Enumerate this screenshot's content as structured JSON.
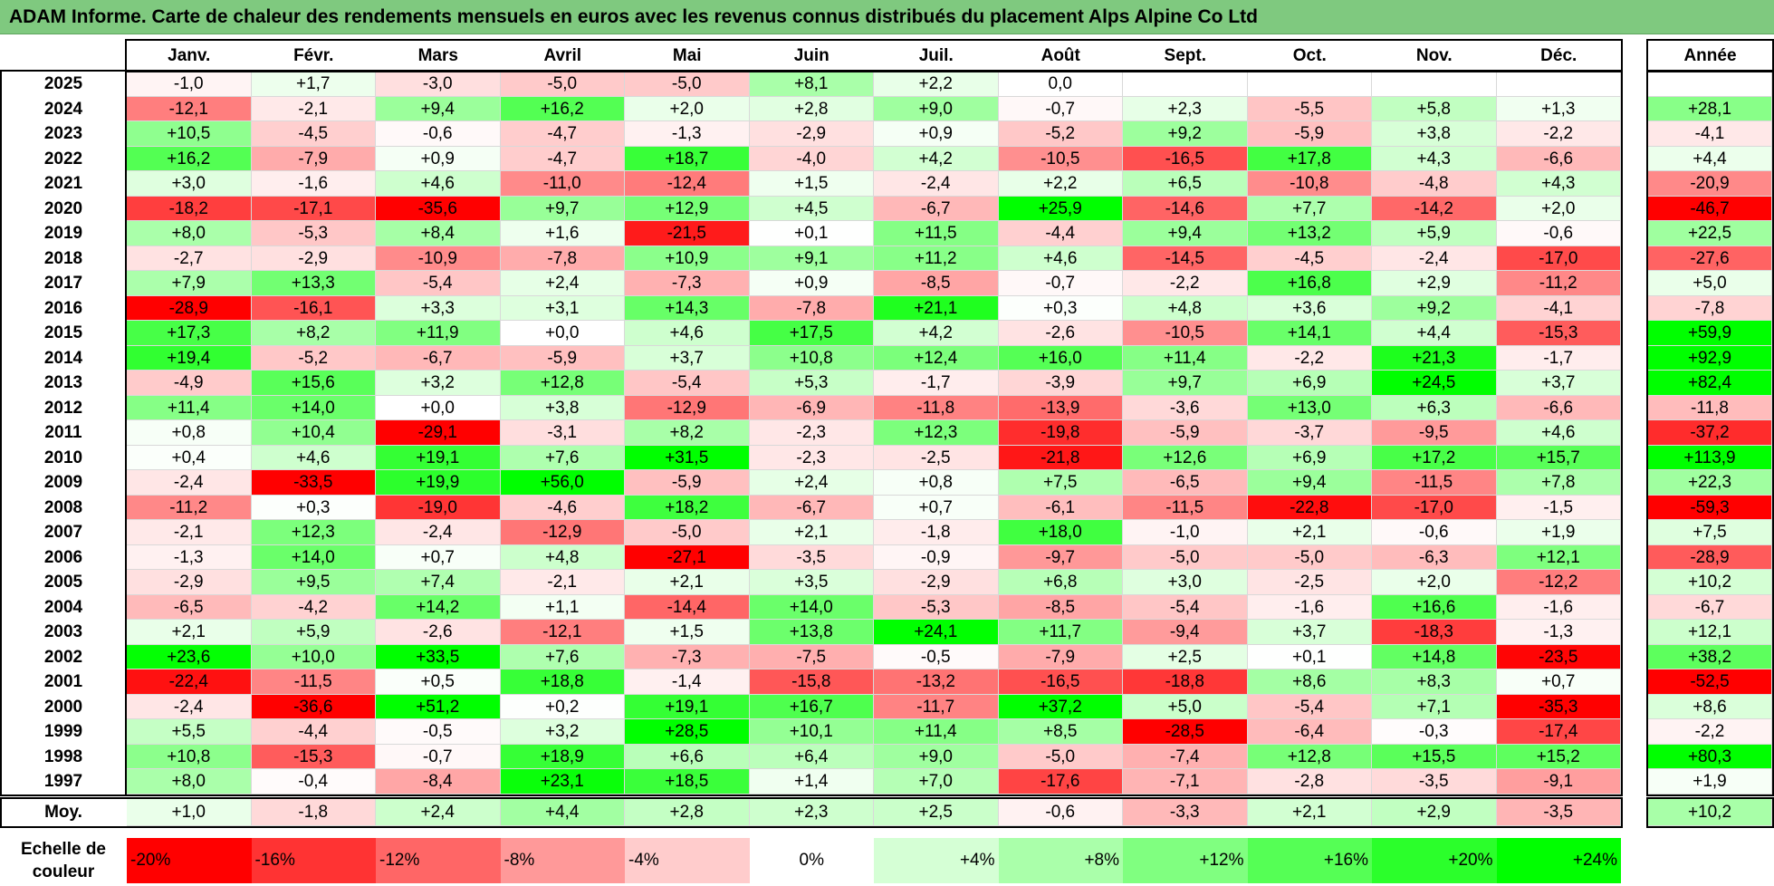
{
  "title": "ADAM Informe. Carte de chaleur des rendements mensuels en euros avec les revenus connus distribués du placement Alps Alpine Co Ltd",
  "chart_data": {
    "type": "heatmap",
    "title": "ADAM Informe. Carte de chaleur des rendements mensuels en euros avec les revenus connus distribués du placement Alps Alpine Co Ltd",
    "columns": [
      "Janv.",
      "Févr.",
      "Mars",
      "Avril",
      "Mai",
      "Juin",
      "Juil.",
      "Août",
      "Sept.",
      "Oct.",
      "Nov.",
      "Déc."
    ],
    "year_header": "Année",
    "rows": [
      {
        "year": "2025",
        "values": [
          "-1,0",
          "+1,7",
          "-3,0",
          "-5,0",
          "-5,0",
          "+8,1",
          "+2,2",
          "0,0",
          "",
          "",
          "",
          ""
        ],
        "annual": ""
      },
      {
        "year": "2024",
        "values": [
          "-12,1",
          "-2,1",
          "+9,4",
          "+16,2",
          "+2,0",
          "+2,8",
          "+9,0",
          "-0,7",
          "+2,3",
          "-5,5",
          "+5,8",
          "+1,3"
        ],
        "annual": "+28,1"
      },
      {
        "year": "2023",
        "values": [
          "+10,5",
          "-4,5",
          "-0,6",
          "-4,7",
          "-1,3",
          "-2,9",
          "+0,9",
          "-5,2",
          "+9,2",
          "-5,9",
          "+3,8",
          "-2,2"
        ],
        "annual": "-4,1"
      },
      {
        "year": "2022",
        "values": [
          "+16,2",
          "-7,9",
          "+0,9",
          "-4,7",
          "+18,7",
          "-4,0",
          "+4,2",
          "-10,5",
          "-16,5",
          "+17,8",
          "+4,3",
          "-6,6"
        ],
        "annual": "+4,4"
      },
      {
        "year": "2021",
        "values": [
          "+3,0",
          "-1,6",
          "+4,6",
          "-11,0",
          "-12,4",
          "+1,5",
          "-2,4",
          "+2,2",
          "+6,5",
          "-10,8",
          "-4,8",
          "+4,3"
        ],
        "annual": "-20,9"
      },
      {
        "year": "2020",
        "values": [
          "-18,2",
          "-17,1",
          "-35,6",
          "+9,7",
          "+12,9",
          "+4,5",
          "-6,7",
          "+25,9",
          "-14,6",
          "+7,7",
          "-14,2",
          "+2,0"
        ],
        "annual": "-46,7"
      },
      {
        "year": "2019",
        "values": [
          "+8,0",
          "-5,3",
          "+8,4",
          "+1,6",
          "-21,5",
          "+0,1",
          "+11,5",
          "-4,4",
          "+9,4",
          "+13,2",
          "+5,9",
          "-0,6"
        ],
        "annual": "+22,5"
      },
      {
        "year": "2018",
        "values": [
          "-2,7",
          "-2,9",
          "-10,9",
          "-7,8",
          "+10,9",
          "+9,1",
          "+11,2",
          "+4,6",
          "-14,5",
          "-4,5",
          "-2,4",
          "-17,0"
        ],
        "annual": "-27,6"
      },
      {
        "year": "2017",
        "values": [
          "+7,9",
          "+13,3",
          "-5,4",
          "+2,4",
          "-7,3",
          "+0,9",
          "-8,5",
          "-0,7",
          "-2,2",
          "+16,8",
          "+2,9",
          "-11,2"
        ],
        "annual": "+5,0"
      },
      {
        "year": "2016",
        "values": [
          "-28,9",
          "-16,1",
          "+3,3",
          "+3,1",
          "+14,3",
          "-7,8",
          "+21,1",
          "+0,3",
          "+4,8",
          "+3,6",
          "+9,2",
          "-4,1"
        ],
        "annual": "-7,8"
      },
      {
        "year": "2015",
        "values": [
          "+17,3",
          "+8,2",
          "+11,9",
          "+0,0",
          "+4,6",
          "+17,5",
          "+4,2",
          "-2,6",
          "-10,5",
          "+14,1",
          "+4,4",
          "-15,3"
        ],
        "annual": "+59,9"
      },
      {
        "year": "2014",
        "values": [
          "+19,4",
          "-5,2",
          "-6,7",
          "-5,9",
          "+3,7",
          "+10,8",
          "+12,4",
          "+16,0",
          "+11,4",
          "-2,2",
          "+21,3",
          "-1,7"
        ],
        "annual": "+92,9"
      },
      {
        "year": "2013",
        "values": [
          "-4,9",
          "+15,6",
          "+3,2",
          "+12,8",
          "-5,4",
          "+5,3",
          "-1,7",
          "-3,9",
          "+9,7",
          "+6,9",
          "+24,5",
          "+3,7"
        ],
        "annual": "+82,4"
      },
      {
        "year": "2012",
        "values": [
          "+11,4",
          "+14,0",
          "+0,0",
          "+3,8",
          "-12,9",
          "-6,9",
          "-11,8",
          "-13,9",
          "-3,6",
          "+13,0",
          "+6,3",
          "-6,6"
        ],
        "annual": "-11,8"
      },
      {
        "year": "2011",
        "values": [
          "+0,8",
          "+10,4",
          "-29,1",
          "-3,1",
          "+8,2",
          "-2,3",
          "+12,3",
          "-19,8",
          "-5,9",
          "-3,7",
          "-9,5",
          "+4,6"
        ],
        "annual": "-37,2"
      },
      {
        "year": "2010",
        "values": [
          "+0,4",
          "+4,6",
          "+19,1",
          "+7,6",
          "+31,5",
          "-2,3",
          "-2,5",
          "-21,8",
          "+12,6",
          "+6,9",
          "+17,2",
          "+15,7"
        ],
        "annual": "+113,9"
      },
      {
        "year": "2009",
        "values": [
          "-2,4",
          "-33,5",
          "+19,9",
          "+56,0",
          "-5,9",
          "+2,4",
          "+0,8",
          "+7,5",
          "-6,5",
          "+9,4",
          "-11,5",
          "+7,8"
        ],
        "annual": "+22,3"
      },
      {
        "year": "2008",
        "values": [
          "-11,2",
          "+0,3",
          "-19,0",
          "-4,6",
          "+18,2",
          "-6,7",
          "+0,7",
          "-6,1",
          "-11,5",
          "-22,8",
          "-17,0",
          "-1,5"
        ],
        "annual": "-59,3"
      },
      {
        "year": "2007",
        "values": [
          "-2,1",
          "+12,3",
          "-2,4",
          "-12,9",
          "-5,0",
          "+2,1",
          "-1,8",
          "+18,0",
          "-1,0",
          "+2,1",
          "-0,6",
          "+1,9"
        ],
        "annual": "+7,5"
      },
      {
        "year": "2006",
        "values": [
          "-1,3",
          "+14,0",
          "+0,7",
          "+4,8",
          "-27,1",
          "-3,5",
          "-0,9",
          "-9,7",
          "-5,0",
          "-5,0",
          "-6,3",
          "+12,1"
        ],
        "annual": "-28,9"
      },
      {
        "year": "2005",
        "values": [
          "-2,9",
          "+9,5",
          "+7,4",
          "-2,1",
          "+2,1",
          "+3,5",
          "-2,9",
          "+6,8",
          "+3,0",
          "-2,5",
          "+2,0",
          "-12,2"
        ],
        "annual": "+10,2"
      },
      {
        "year": "2004",
        "values": [
          "-6,5",
          "-4,2",
          "+14,2",
          "+1,1",
          "-14,4",
          "+14,0",
          "-5,3",
          "-8,5",
          "-5,4",
          "-1,6",
          "+16,6",
          "-1,6"
        ],
        "annual": "-6,7"
      },
      {
        "year": "2003",
        "values": [
          "+2,1",
          "+5,9",
          "-2,6",
          "-12,1",
          "+1,5",
          "+13,8",
          "+24,1",
          "+11,7",
          "-9,4",
          "+3,7",
          "-18,3",
          "-1,3"
        ],
        "annual": "+12,1"
      },
      {
        "year": "2002",
        "values": [
          "+23,6",
          "+10,0",
          "+33,5",
          "+7,6",
          "-7,3",
          "-7,5",
          "-0,5",
          "-7,9",
          "+2,5",
          "+0,1",
          "+14,8",
          "-23,5"
        ],
        "annual": "+38,2"
      },
      {
        "year": "2001",
        "values": [
          "-22,4",
          "-11,5",
          "+0,5",
          "+18,8",
          "-1,4",
          "-15,8",
          "-13,2",
          "-16,5",
          "-18,8",
          "+8,6",
          "+8,3",
          "+0,7"
        ],
        "annual": "-52,5"
      },
      {
        "year": "2000",
        "values": [
          "-2,4",
          "-36,6",
          "+51,2",
          "+0,2",
          "+19,1",
          "+16,7",
          "-11,7",
          "+37,2",
          "+5,0",
          "-5,4",
          "+7,1",
          "-35,3"
        ],
        "annual": "+8,6"
      },
      {
        "year": "1999",
        "values": [
          "+5,5",
          "-4,4",
          "-0,5",
          "+3,2",
          "+28,5",
          "+10,1",
          "+11,4",
          "+8,5",
          "-28,5",
          "-6,4",
          "-0,3",
          "-17,4"
        ],
        "annual": "-2,2"
      },
      {
        "year": "1998",
        "values": [
          "+10,8",
          "-15,3",
          "-0,7",
          "+18,9",
          "+6,6",
          "+6,4",
          "+9,0",
          "-5,0",
          "-7,4",
          "+12,8",
          "+15,5",
          "+15,2"
        ],
        "annual": "+80,3"
      },
      {
        "year": "1997",
        "values": [
          "+8,0",
          "-0,4",
          "-8,4",
          "+23,1",
          "+18,5",
          "+1,4",
          "+7,0",
          "-17,6",
          "-7,1",
          "-2,8",
          "-3,5",
          "-9,1"
        ],
        "annual": "+1,9"
      }
    ],
    "average": {
      "label": "Moy.",
      "values": [
        "+1,0",
        "-1,8",
        "+2,4",
        "+4,4",
        "+2,8",
        "+2,3",
        "+2,5",
        "-0,6",
        "-3,3",
        "+2,1",
        "+2,9",
        "-3,5"
      ],
      "annual": "+10,2"
    },
    "scale": {
      "label": "Echelle de couleur",
      "steps": [
        "-20%",
        "-16%",
        "-12%",
        "-8%",
        "-4%",
        "0%",
        "+4%",
        "+8%",
        "+12%",
        "+16%",
        "+20%",
        "+24%"
      ]
    },
    "colors": {
      "negative_max": "#ff0000",
      "neutral": "#ffffff",
      "positive_max": "#00ff00"
    }
  }
}
